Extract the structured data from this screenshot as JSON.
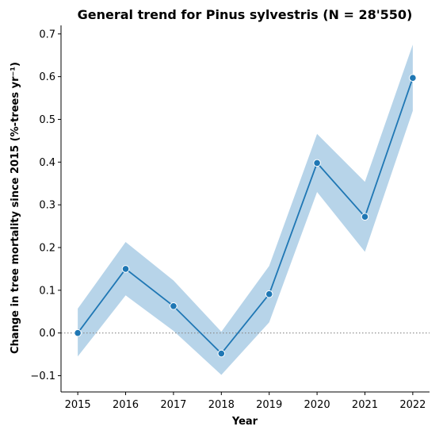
{
  "chart_data": {
    "type": "line",
    "title": "General trend for Pinus sylvestris  (N = 28'550)",
    "xlabel": "Year",
    "ylabel": "Change in tree mortality since 2015 (%-trees yr⁻¹)",
    "x": [
      2015,
      2016,
      2017,
      2018,
      2019,
      2020,
      2021,
      2022
    ],
    "x_tick_labels": [
      "2015",
      "2016",
      "2017",
      "2018",
      "2019",
      "2020",
      "2021",
      "2022"
    ],
    "y_ticks": [
      -0.1,
      0.0,
      0.1,
      0.2,
      0.3,
      0.4,
      0.5,
      0.6,
      0.7
    ],
    "y_tick_labels": [
      "−0.1",
      "0.0",
      "0.1",
      "0.2",
      "0.3",
      "0.4",
      "0.5",
      "0.6",
      "0.7"
    ],
    "xlim": [
      2014.65,
      2022.35
    ],
    "ylim": [
      -0.138,
      0.72
    ],
    "series": [
      {
        "values": [
          0.0,
          0.15,
          0.063,
          -0.048,
          0.091,
          0.398,
          0.272,
          0.597
        ],
        "ci_lower": [
          -0.055,
          0.088,
          0.005,
          -0.098,
          0.025,
          0.33,
          0.19,
          0.52
        ],
        "ci_upper": [
          0.057,
          0.213,
          0.123,
          0.003,
          0.157,
          0.466,
          0.354,
          0.675
        ],
        "color": "#1f77b4",
        "band_color": "#b7d4e9"
      }
    ],
    "reference_line": {
      "y": 0.0,
      "style": "dotted",
      "color": "#888888"
    },
    "grid": false
  }
}
